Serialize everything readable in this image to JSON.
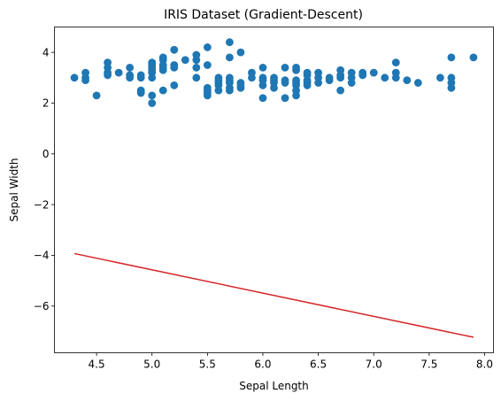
{
  "chart_data": {
    "type": "scatter",
    "title": "IRIS Dataset (Gradient-Descent)",
    "xlabel": "Sepal Length",
    "ylabel": "Sepal Width",
    "xlim": [
      4.12,
      8.08
    ],
    "ylim": [
      -7.84,
      5.0
    ],
    "xticks": [
      4.5,
      5.0,
      5.5,
      6.0,
      6.5,
      7.0,
      7.5,
      8.0
    ],
    "xtick_labels": [
      "4.5",
      "5.0",
      "5.5",
      "6.0",
      "6.5",
      "7.0",
      "7.5",
      "8.0"
    ],
    "yticks": [
      -6,
      -4,
      -2,
      0,
      2,
      4
    ],
    "ytick_labels": [
      "−6",
      "−4",
      "−2",
      "0",
      "2",
      "4"
    ],
    "grid": false,
    "colors": {
      "points": "#1f77b4",
      "line": "#d62728"
    },
    "points": [
      [
        4.3,
        3.0
      ],
      [
        4.4,
        2.9
      ],
      [
        4.4,
        3.0
      ],
      [
        4.4,
        3.2
      ],
      [
        4.5,
        2.3
      ],
      [
        4.6,
        3.1
      ],
      [
        4.6,
        3.2
      ],
      [
        4.6,
        3.4
      ],
      [
        4.6,
        3.6
      ],
      [
        4.7,
        3.2
      ],
      [
        4.8,
        3.0
      ],
      [
        4.8,
        3.1
      ],
      [
        4.8,
        3.4
      ],
      [
        4.9,
        2.4
      ],
      [
        4.9,
        2.5
      ],
      [
        4.9,
        3.0
      ],
      [
        4.9,
        3.1
      ],
      [
        5.0,
        2.0
      ],
      [
        5.0,
        2.3
      ],
      [
        5.0,
        3.0
      ],
      [
        5.0,
        3.2
      ],
      [
        5.0,
        3.3
      ],
      [
        5.0,
        3.4
      ],
      [
        5.0,
        3.5
      ],
      [
        5.0,
        3.6
      ],
      [
        5.1,
        2.5
      ],
      [
        5.1,
        3.3
      ],
      [
        5.1,
        3.4
      ],
      [
        5.1,
        3.5
      ],
      [
        5.1,
        3.7
      ],
      [
        5.1,
        3.8
      ],
      [
        5.2,
        2.7
      ],
      [
        5.2,
        3.4
      ],
      [
        5.2,
        3.5
      ],
      [
        5.2,
        4.1
      ],
      [
        5.3,
        3.7
      ],
      [
        5.4,
        3.0
      ],
      [
        5.4,
        3.4
      ],
      [
        5.4,
        3.7
      ],
      [
        5.4,
        3.9
      ],
      [
        5.5,
        2.3
      ],
      [
        5.5,
        2.4
      ],
      [
        5.5,
        2.5
      ],
      [
        5.5,
        2.6
      ],
      [
        5.5,
        3.5
      ],
      [
        5.5,
        4.2
      ],
      [
        5.6,
        2.5
      ],
      [
        5.6,
        2.7
      ],
      [
        5.6,
        2.8
      ],
      [
        5.6,
        2.9
      ],
      [
        5.6,
        3.0
      ],
      [
        5.7,
        2.5
      ],
      [
        5.7,
        2.6
      ],
      [
        5.7,
        2.8
      ],
      [
        5.7,
        2.9
      ],
      [
        5.7,
        3.0
      ],
      [
        5.7,
        3.8
      ],
      [
        5.7,
        4.4
      ],
      [
        5.8,
        2.6
      ],
      [
        5.8,
        2.7
      ],
      [
        5.8,
        2.8
      ],
      [
        5.8,
        4.0
      ],
      [
        5.9,
        3.0
      ],
      [
        5.9,
        3.2
      ],
      [
        6.0,
        2.2
      ],
      [
        6.0,
        2.7
      ],
      [
        6.0,
        2.9
      ],
      [
        6.0,
        3.0
      ],
      [
        6.0,
        3.4
      ],
      [
        6.1,
        2.6
      ],
      [
        6.1,
        2.8
      ],
      [
        6.1,
        2.9
      ],
      [
        6.1,
        3.0
      ],
      [
        6.2,
        2.2
      ],
      [
        6.2,
        2.8
      ],
      [
        6.2,
        2.9
      ],
      [
        6.2,
        3.4
      ],
      [
        6.3,
        2.3
      ],
      [
        6.3,
        2.5
      ],
      [
        6.3,
        2.7
      ],
      [
        6.3,
        2.8
      ],
      [
        6.3,
        2.9
      ],
      [
        6.3,
        3.3
      ],
      [
        6.3,
        3.4
      ],
      [
        6.4,
        2.7
      ],
      [
        6.4,
        2.8
      ],
      [
        6.4,
        2.9
      ],
      [
        6.4,
        3.1
      ],
      [
        6.4,
        3.2
      ],
      [
        6.5,
        2.8
      ],
      [
        6.5,
        3.0
      ],
      [
        6.5,
        3.2
      ],
      [
        6.6,
        2.9
      ],
      [
        6.6,
        3.0
      ],
      [
        6.7,
        2.5
      ],
      [
        6.7,
        3.0
      ],
      [
        6.7,
        3.1
      ],
      [
        6.7,
        3.3
      ],
      [
        6.8,
        2.8
      ],
      [
        6.8,
        3.0
      ],
      [
        6.8,
        3.2
      ],
      [
        6.9,
        3.1
      ],
      [
        6.9,
        3.2
      ],
      [
        7.0,
        3.2
      ],
      [
        7.1,
        3.0
      ],
      [
        7.2,
        3.0
      ],
      [
        7.2,
        3.2
      ],
      [
        7.2,
        3.6
      ],
      [
        7.3,
        2.9
      ],
      [
        7.4,
        2.8
      ],
      [
        7.6,
        3.0
      ],
      [
        7.7,
        2.6
      ],
      [
        7.7,
        2.8
      ],
      [
        7.7,
        3.0
      ],
      [
        7.7,
        3.8
      ],
      [
        7.9,
        3.8
      ]
    ],
    "line": {
      "x": [
        4.3,
        7.9
      ],
      "y": [
        -3.93,
        -7.23
      ]
    }
  }
}
